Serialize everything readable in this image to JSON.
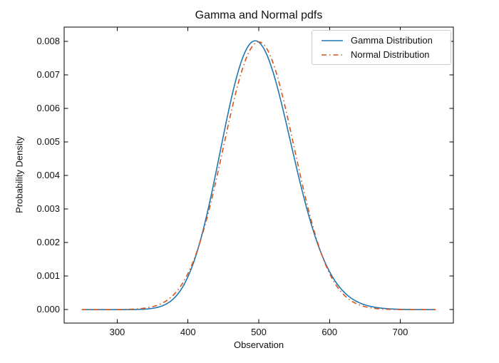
{
  "figure": {
    "background": "#ffffff"
  },
  "chart_data": {
    "type": "line",
    "title": "Gamma and Normal pdfs",
    "xlabel": "Observation",
    "ylabel": "Probability Density",
    "xlim": [
      225,
      775
    ],
    "ylim": [
      -0.0004,
      0.00842
    ],
    "x_ticks": [
      300,
      400,
      500,
      600,
      700
    ],
    "x_tick_labels": [
      "300",
      "400",
      "500",
      "600",
      "700"
    ],
    "y_ticks": [
      0.0,
      0.001,
      0.002,
      0.003,
      0.004,
      0.005,
      0.006,
      0.007,
      0.008
    ],
    "y_tick_labels": [
      "0.000",
      "0.001",
      "0.002",
      "0.003",
      "0.004",
      "0.005",
      "0.006",
      "0.007",
      "0.008"
    ],
    "grid": false,
    "ticks_direction": "in",
    "ticks_on_all_sides": true,
    "axis_color": "#000000",
    "legend": {
      "position": "upper right",
      "frame": true,
      "border_color": "#cccccc"
    },
    "series": [
      {
        "name": "Gamma Distribution",
        "color": "#1f77b4",
        "linestyle": "solid",
        "linewidth": 1.6,
        "distribution": {
          "type": "gamma",
          "shape": 100,
          "scale": 5
        },
        "x_start": 250,
        "x_end": 750,
        "peak": {
          "x": 495,
          "y": 0.008
        },
        "sample_points": {
          "x": [
            250,
            300,
            350,
            400,
            450,
            500,
            550,
            600,
            650,
            700,
            750
          ],
          "y": [
            0.0,
            2e-07,
            3.93e-05,
            0.000984,
            0.005183,
            0.007972,
            0.004534,
            0.001131,
            0.0001423,
            9.9e-06,
            4e-07
          ]
        }
      },
      {
        "name": "Normal Distribution",
        "color": "#d95319",
        "linestyle": "dashdot",
        "linewidth": 1.6,
        "distribution": {
          "type": "normal",
          "mean": 500,
          "std": 50
        },
        "x_start": 250,
        "x_end": 750,
        "peak": {
          "x": 500,
          "y": 0.0079788
        },
        "sample_points": {
          "x": [
            250,
            300,
            350,
            400,
            450,
            500,
            550,
            600,
            650,
            700,
            750
          ],
          "y": [
            0.0,
            2.7e-06,
            8.86e-05,
            0.0010798,
            0.0048394,
            0.0079788,
            0.0048394,
            0.0010798,
            8.86e-05,
            2.7e-06,
            0.0
          ]
        }
      }
    ]
  }
}
